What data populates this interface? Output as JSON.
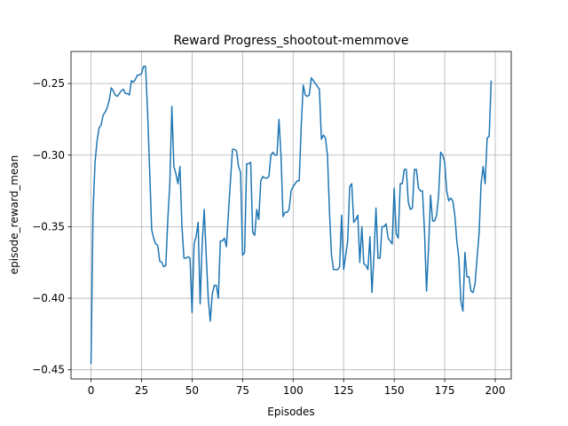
{
  "chart_data": {
    "type": "line",
    "title": "Reward Progress_shootout-memmove",
    "xlabel": "Episodes",
    "ylabel": "episode_reward_mean",
    "x": [
      0,
      1,
      2,
      3,
      4,
      5,
      6,
      7,
      8,
      9,
      10,
      11,
      12,
      13,
      14,
      15,
      16,
      17,
      18,
      19,
      20,
      21,
      22,
      23,
      24,
      25,
      26,
      27,
      28,
      29,
      30,
      31,
      32,
      33,
      34,
      35,
      36,
      37,
      38,
      39,
      40,
      41,
      42,
      43,
      44,
      45,
      46,
      47,
      48,
      49,
      50,
      51,
      52,
      53,
      54,
      55,
      56,
      57,
      58,
      59,
      60,
      61,
      62,
      63,
      64,
      65,
      66,
      67,
      68,
      69,
      70,
      71,
      72,
      73,
      74,
      75,
      76,
      77,
      78,
      79,
      80,
      81,
      82,
      83,
      84,
      85,
      86,
      87,
      88,
      89,
      90,
      91,
      92,
      93,
      94,
      95,
      96,
      97,
      98,
      99,
      100,
      101,
      102,
      103,
      104,
      105,
      106,
      107,
      108,
      109,
      110,
      111,
      112,
      113,
      114,
      115,
      116,
      117,
      118,
      119,
      120,
      121,
      122,
      123,
      124,
      125,
      126,
      127,
      128,
      129,
      130,
      131,
      132,
      133,
      134,
      135,
      136,
      137,
      138,
      139,
      140,
      141,
      142,
      143,
      144,
      145,
      146,
      147,
      148,
      149,
      150,
      151,
      152,
      153,
      154,
      155,
      156,
      157,
      158,
      159,
      160,
      161,
      162,
      163,
      164,
      165,
      166,
      167,
      168,
      169,
      170,
      171,
      172,
      173,
      174,
      175,
      176,
      177,
      178,
      179,
      180,
      181,
      182,
      183,
      184,
      185,
      186,
      187,
      188,
      189,
      190,
      191,
      192,
      193,
      194,
      195,
      196,
      197,
      198
    ],
    "series": [
      {
        "name": "episode_reward_mean",
        "color": "#1f77b4",
        "values": [
          -0.446,
          -0.34,
          -0.305,
          -0.29,
          -0.281,
          -0.279,
          -0.272,
          -0.27,
          -0.267,
          -0.262,
          -0.253,
          -0.255,
          -0.258,
          -0.259,
          -0.257,
          -0.255,
          -0.254,
          -0.257,
          -0.257,
          -0.258,
          -0.248,
          -0.249,
          -0.247,
          -0.244,
          -0.244,
          -0.243,
          -0.238,
          -0.238,
          -0.27,
          -0.31,
          -0.352,
          -0.358,
          -0.362,
          -0.363,
          -0.374,
          -0.375,
          -0.378,
          -0.377,
          -0.345,
          -0.32,
          -0.266,
          -0.308,
          -0.313,
          -0.32,
          -0.308,
          -0.35,
          -0.372,
          -0.372,
          -0.371,
          -0.372,
          -0.41,
          -0.362,
          -0.357,
          -0.347,
          -0.404,
          -0.362,
          -0.338,
          -0.37,
          -0.4,
          -0.416,
          -0.397,
          -0.391,
          -0.391,
          -0.4,
          -0.36,
          -0.36,
          -0.358,
          -0.364,
          -0.34,
          -0.318,
          -0.296,
          -0.296,
          -0.297,
          -0.308,
          -0.312,
          -0.37,
          -0.368,
          -0.306,
          -0.306,
          -0.305,
          -0.354,
          -0.356,
          -0.338,
          -0.345,
          -0.318,
          -0.315,
          -0.316,
          -0.316,
          -0.315,
          -0.3,
          -0.298,
          -0.3,
          -0.3,
          -0.275,
          -0.3,
          -0.343,
          -0.34,
          -0.34,
          -0.338,
          -0.325,
          -0.322,
          -0.32,
          -0.318,
          -0.318,
          -0.28,
          -0.251,
          -0.258,
          -0.259,
          -0.258,
          -0.246,
          -0.248,
          -0.25,
          -0.252,
          -0.254,
          -0.289,
          -0.286,
          -0.288,
          -0.3,
          -0.34,
          -0.37,
          -0.38,
          -0.38,
          -0.38,
          -0.378,
          -0.342,
          -0.38,
          -0.37,
          -0.36,
          -0.322,
          -0.32,
          -0.347,
          -0.345,
          -0.342,
          -0.375,
          -0.35,
          -0.376,
          -0.377,
          -0.38,
          -0.357,
          -0.396,
          -0.37,
          -0.337,
          -0.372,
          -0.372,
          -0.35,
          -0.35,
          -0.348,
          -0.358,
          -0.36,
          -0.362,
          -0.323,
          -0.355,
          -0.358,
          -0.32,
          -0.32,
          -0.31,
          -0.31,
          -0.333,
          -0.338,
          -0.337,
          -0.31,
          -0.31,
          -0.323,
          -0.325,
          -0.325,
          -0.353,
          -0.395,
          -0.365,
          -0.328,
          -0.346,
          -0.346,
          -0.342,
          -0.328,
          -0.298,
          -0.3,
          -0.305,
          -0.325,
          -0.332,
          -0.33,
          -0.332,
          -0.342,
          -0.36,
          -0.372,
          -0.402,
          -0.409,
          -0.368,
          -0.385,
          -0.385,
          -0.395,
          -0.396,
          -0.39,
          -0.372,
          -0.355,
          -0.32,
          -0.308,
          -0.32,
          -0.288,
          -0.287,
          -0.248
        ]
      }
    ],
    "xlim": [
      -9.9,
      207.9
    ],
    "xticks": [
      0,
      25,
      50,
      75,
      100,
      125,
      150,
      175,
      200
    ],
    "ylim": [
      -0.4564,
      -0.2276
    ],
    "yticks": [
      {
        "value": -0.45,
        "label": "−0.45"
      },
      {
        "value": -0.4,
        "label": "−0.40"
      },
      {
        "value": -0.35,
        "label": "−0.35"
      },
      {
        "value": -0.3,
        "label": "−0.30"
      },
      {
        "value": -0.25,
        "label": "−0.25"
      }
    ],
    "grid": true
  }
}
